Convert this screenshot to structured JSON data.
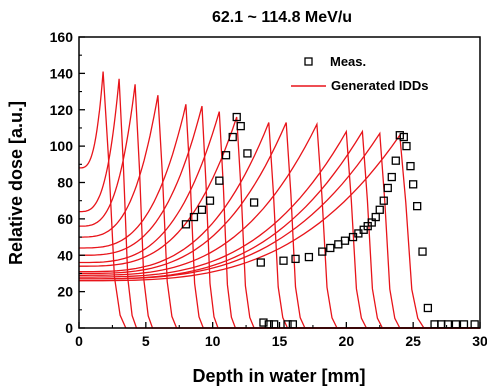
{
  "chart_data": {
    "type": "line",
    "title": "62.1 ~ 114.8 MeV/u",
    "xlabel": "Depth in water [mm]",
    "ylabel": "Relative dose [a.u.]",
    "xlim": [
      0,
      30
    ],
    "ylim": [
      0,
      160
    ],
    "x_ticks": [
      "0",
      "5",
      "10",
      "15",
      "20",
      "25",
      "30"
    ],
    "y_ticks": [
      "0",
      "20",
      "40",
      "60",
      "80",
      "100",
      "120",
      "140",
      "160"
    ],
    "grid": false,
    "legend": {
      "position": "top-right",
      "entries": [
        "Meas.",
        "Generated IDDs"
      ]
    },
    "colors": {
      "generated": "#e8141a",
      "measured": "#000000"
    },
    "generated_idds": [
      {
        "peak_x": 1.8,
        "peak_y": 141,
        "entrance_y": 88,
        "fall_x": 3.5
      },
      {
        "peak_x": 3.0,
        "peak_y": 137,
        "entrance_y": 64,
        "fall_x": 4.3
      },
      {
        "peak_x": 4.2,
        "peak_y": 134,
        "entrance_y": 56,
        "fall_x": 5.5
      },
      {
        "peak_x": 5.9,
        "peak_y": 128,
        "entrance_y": 50,
        "fall_x": 7.3
      },
      {
        "peak_x": 8.0,
        "peak_y": 123,
        "entrance_y": 44,
        "fall_x": 9.3
      },
      {
        "peak_x": 9.2,
        "peak_y": 122,
        "entrance_y": 40,
        "fall_x": 10.4
      },
      {
        "peak_x": 10.5,
        "peak_y": 119,
        "entrance_y": 36,
        "fall_x": 11.7
      },
      {
        "peak_x": 11.8,
        "peak_y": 116,
        "entrance_y": 34,
        "fall_x": 13.1
      },
      {
        "peak_x": 14.2,
        "peak_y": 113,
        "entrance_y": 31,
        "fall_x": 15.6
      },
      {
        "peak_x": 15.5,
        "peak_y": 113,
        "entrance_y": 30,
        "fall_x": 16.9
      },
      {
        "peak_x": 17.8,
        "peak_y": 112,
        "entrance_y": 29,
        "fall_x": 19.3
      },
      {
        "peak_x": 20.0,
        "peak_y": 108,
        "entrance_y": 28,
        "fall_x": 21.5
      },
      {
        "peak_x": 21.2,
        "peak_y": 108,
        "entrance_y": 27,
        "fall_x": 22.7
      },
      {
        "peak_x": 22.5,
        "peak_y": 107,
        "entrance_y": 27,
        "fall_x": 24.0
      },
      {
        "peak_x": 24.0,
        "peak_y": 106,
        "entrance_y": 26,
        "fall_x": 25.8
      }
    ],
    "measured_series": [
      {
        "name": "Meas.",
        "x": [
          8.0,
          8.6,
          9.2,
          9.8,
          10.5,
          11.0,
          11.5,
          11.8,
          12.1,
          12.6,
          13.1,
          13.8,
          14.2,
          14.6,
          15.6,
          16.0
        ],
        "y": [
          57,
          61,
          65,
          70,
          81,
          95,
          105,
          116,
          111,
          96,
          69,
          3,
          2,
          2,
          2,
          2
        ]
      },
      {
        "name": "Meas.",
        "x": [
          13.6,
          15.3,
          16.2,
          17.2,
          18.2,
          18.8,
          19.4,
          19.9,
          20.5,
          20.9,
          21.3,
          21.6,
          21.9,
          22.2,
          22.5,
          22.8,
          23.1,
          23.4,
          23.7,
          24.0,
          24.3,
          24.5,
          24.8,
          25.0,
          25.3,
          25.7,
          26.1,
          26.6,
          27.1,
          27.6,
          28.2,
          28.8,
          29.6
        ],
        "y": [
          36,
          37,
          38,
          39,
          42,
          44,
          46,
          48,
          50,
          52,
          54,
          56,
          58,
          61,
          65,
          70,
          77,
          83,
          92,
          106,
          105,
          100,
          89,
          79,
          67,
          42,
          11,
          2,
          2,
          2,
          2,
          2,
          2
        ]
      }
    ]
  }
}
